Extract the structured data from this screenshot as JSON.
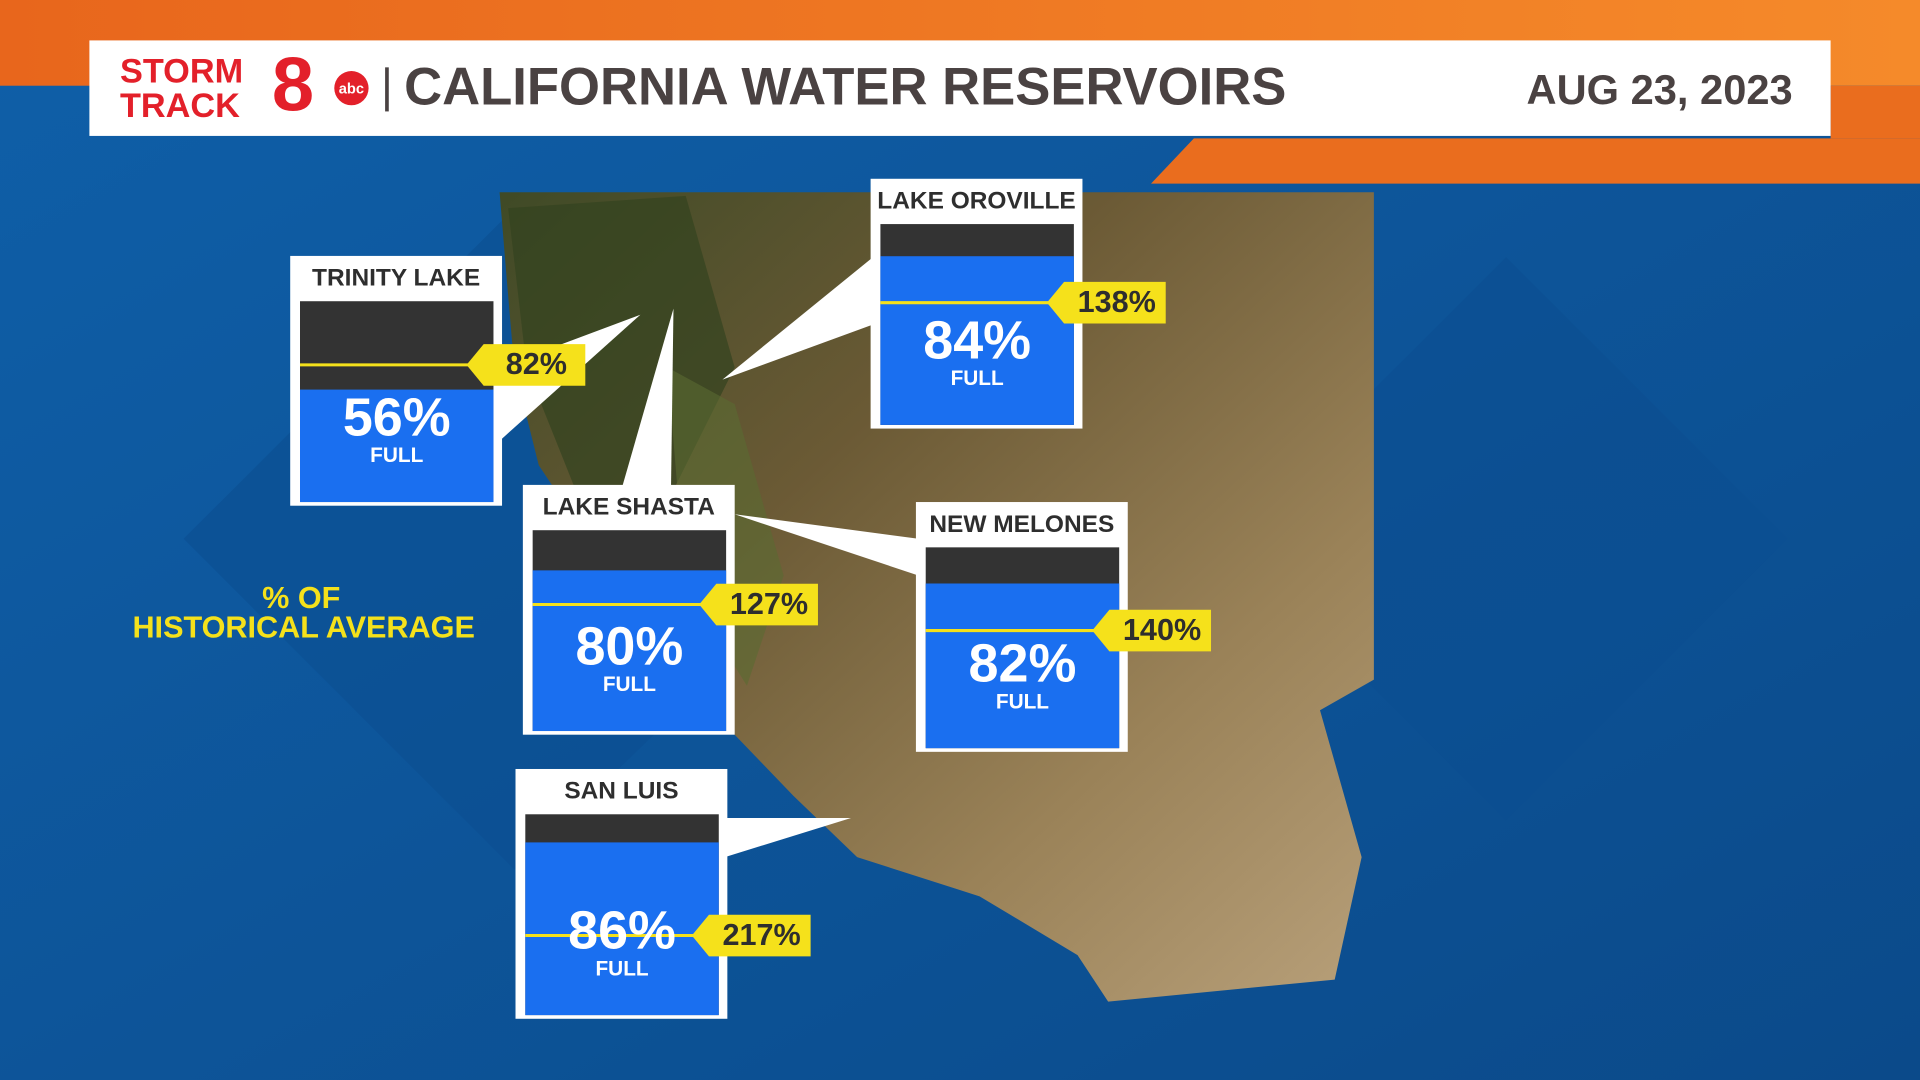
{
  "header": {
    "logo": {
      "line1": "STORM",
      "line2": "TRACK",
      "number": "8",
      "network": "abc"
    },
    "title": "CALIFORNIA WATER RESERVOIRS",
    "date": "AUG 23, 2023"
  },
  "legend": {
    "lines": [
      "% OF",
      "HISTORICAL AVERAGE"
    ]
  },
  "full_label": "FULL",
  "reservoirs": [
    {
      "name": "TRINITY LAKE",
      "full": {
        "value": 56,
        "label": "56%"
      },
      "average": {
        "value": 82,
        "label": "82%"
      }
    },
    {
      "name": "LAKE OROVILLE",
      "full": {
        "value": 84,
        "label": "84%"
      },
      "average": {
        "value": 138,
        "label": "138%"
      }
    },
    {
      "name": "LAKE SHASTA",
      "full": {
        "value": 80,
        "label": "80%"
      },
      "average": {
        "value": 127,
        "label": "127%"
      }
    },
    {
      "name": "NEW MELONES",
      "full": {
        "value": 82,
        "label": "82%"
      },
      "average": {
        "value": 140,
        "label": "140%"
      }
    },
    {
      "name": "SAN LUIS",
      "full": {
        "value": 86,
        "label": "86%"
      },
      "average": {
        "value": 217,
        "label": "217%"
      }
    }
  ]
}
